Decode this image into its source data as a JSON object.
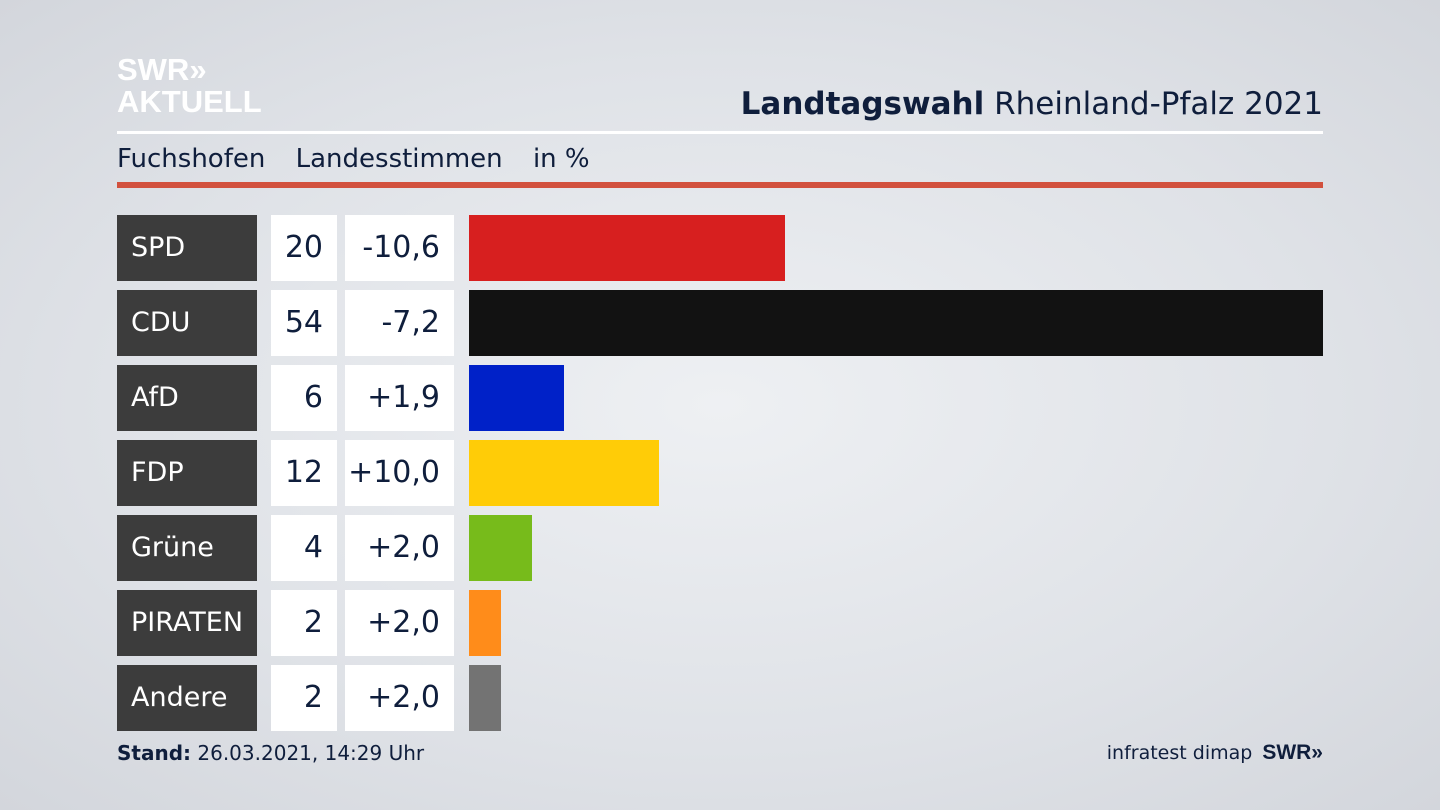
{
  "header": {
    "logo_line1": "SWR»",
    "logo_line2": "AKTUELL",
    "title_bold": "Landtagswahl",
    "title_rest": "Rheinland-Pfalz 2021"
  },
  "subtitle": {
    "place": "Fuchshofen",
    "type": "Landesstimmen",
    "unit": "in %"
  },
  "chart_data": {
    "type": "bar",
    "orientation": "horizontal",
    "title": "Landtagswahl Rheinland-Pfalz 2021 – Fuchshofen Landesstimmen in %",
    "categories": [
      "SPD",
      "CDU",
      "AfD",
      "FDP",
      "Grüne",
      "PIRATEN",
      "Andere"
    ],
    "values": [
      20,
      54,
      6,
      12,
      4,
      2,
      2
    ],
    "changes": [
      "-10,6",
      "-7,2",
      "+1,9",
      "+10,0",
      "+2,0",
      "+2,0",
      "+2,0"
    ],
    "colors": [
      "#d71f1f",
      "#121212",
      "#0021c8",
      "#ffcc07",
      "#77bb1b",
      "#ff8c1a",
      "#737373"
    ],
    "xlim": [
      0,
      54
    ]
  },
  "footer": {
    "stand_label": "Stand:",
    "stand_value": "26.03.2021, 14:29 Uhr",
    "source": "infratest dimap",
    "source_logo": "SWR»"
  }
}
